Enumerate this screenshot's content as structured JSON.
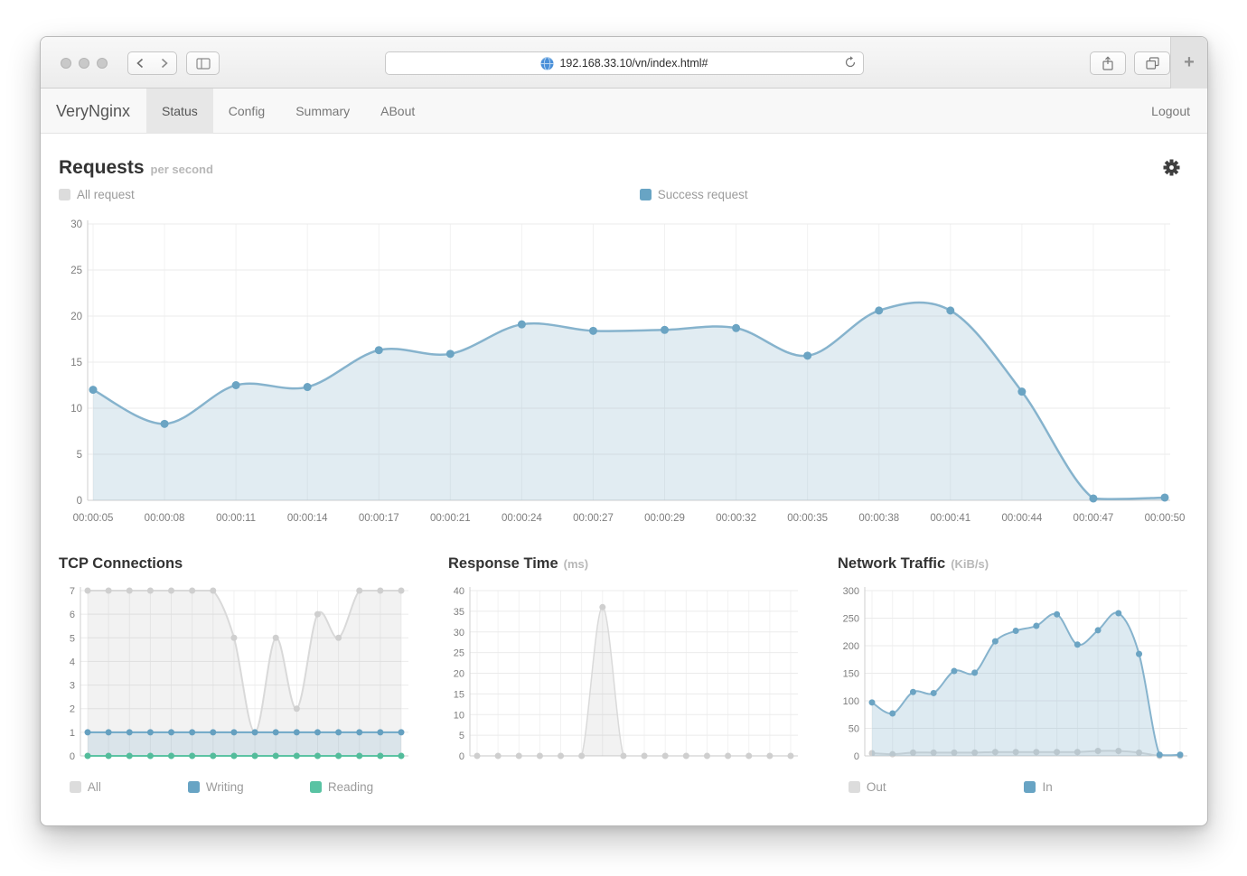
{
  "browser": {
    "url": "192.168.33.10/vn/index.html#",
    "new_tab_label": "+"
  },
  "navbar": {
    "brand": "VeryNginx",
    "items": [
      {
        "label": "Status",
        "active": true
      },
      {
        "label": "Config",
        "active": false
      },
      {
        "label": "Summary",
        "active": false
      },
      {
        "label": "ABout",
        "active": false
      }
    ],
    "logout_label": "Logout"
  },
  "colors": {
    "series_blue": "#86b3cd",
    "marker_blue": "#6ba4c3",
    "series_gray": "#d9d9d9",
    "marker_gray": "#cfcfcf",
    "series_green": "#5cc3a3",
    "legend_gray": "#dcdcdc",
    "legend_blue": "#68a4c4",
    "legend_green": "#59c3a3"
  },
  "chart_data": [
    {
      "id": "requests",
      "type": "area",
      "title": "Requests",
      "subtitle": "per second",
      "x_labels": [
        "00:00:05",
        "00:00:08",
        "00:00:11",
        "00:00:14",
        "00:00:17",
        "00:00:21",
        "00:00:24",
        "00:00:27",
        "00:00:29",
        "00:00:32",
        "00:00:35",
        "00:00:38",
        "00:00:41",
        "00:00:44",
        "00:00:47",
        "00:00:50"
      ],
      "ylim": [
        0,
        30
      ],
      "y_ticks": [
        0,
        5,
        10,
        15,
        20,
        25,
        30
      ],
      "grid": true,
      "legend_position": "top",
      "legend": [
        {
          "label": "All request",
          "color": "#dcdcdc",
          "pos": 0
        },
        {
          "label": "Success request",
          "color": "#68a4c4",
          "pos": 51.3
        }
      ],
      "series": [
        {
          "name": "Success request",
          "color": "#86b3cd",
          "marker": "#6ba4c3",
          "fill": "rgba(134,179,205,0.25)",
          "values": [
            12,
            8.3,
            12.5,
            12.3,
            16.3,
            15.9,
            19.1,
            18.4,
            18.5,
            18.7,
            15.7,
            20.6,
            20.6,
            11.8,
            0.2,
            0.3
          ]
        }
      ]
    },
    {
      "id": "tcp",
      "type": "area",
      "title": "TCP Connections",
      "subtitle": "",
      "ylim": [
        0,
        7
      ],
      "y_ticks": [
        0,
        1,
        2,
        3,
        4,
        5,
        6,
        7
      ],
      "grid": true,
      "legend_position": "bottom",
      "legend": [
        {
          "label": "All",
          "color": "#dcdcdc",
          "pos": 3
        },
        {
          "label": "Writing",
          "color": "#68a4c4",
          "pos": 36
        },
        {
          "label": "Reading",
          "color": "#59c3a3",
          "pos": 70
        }
      ],
      "series": [
        {
          "name": "All",
          "color": "#d9d9d9",
          "marker": "#cfcfcf",
          "fill": "rgba(0,0,0,0.05)",
          "values": [
            7,
            7,
            7,
            7,
            7,
            7,
            7,
            5,
            1,
            5,
            2,
            6,
            5,
            7,
            7,
            7
          ]
        },
        {
          "name": "Writing",
          "color": "#6fa8c7",
          "marker": "#65a0c0",
          "fill": "rgba(111,168,199,0.18)",
          "values": [
            1,
            1,
            1,
            1,
            1,
            1,
            1,
            1,
            1,
            1,
            1,
            1,
            1,
            1,
            1,
            1
          ]
        },
        {
          "name": "Reading",
          "color": "#5cc3a3",
          "marker": "#53bc9b",
          "fill": "rgba(92,195,163,0.12)",
          "values": [
            0,
            0,
            0,
            0,
            0,
            0,
            0,
            0,
            0,
            0,
            0,
            0,
            0,
            0,
            0,
            0
          ]
        }
      ]
    },
    {
      "id": "response",
      "type": "area",
      "title": "Response Time",
      "subtitle": "(ms)",
      "ylim": [
        0,
        40
      ],
      "y_ticks": [
        0,
        5,
        10,
        15,
        20,
        25,
        30,
        35,
        40
      ],
      "grid": true,
      "legend_position": "bottom",
      "legend": [],
      "series": [
        {
          "name": "Response time",
          "color": "#dadada",
          "marker": "#cfcfcf",
          "fill": "rgba(0,0,0,0.05)",
          "values": [
            0,
            0,
            0,
            0,
            0,
            0,
            36,
            0,
            0,
            0,
            0,
            0,
            0,
            0,
            0,
            0
          ]
        }
      ]
    },
    {
      "id": "network",
      "type": "area",
      "title": "Network Traffic",
      "subtitle": "(KiB/s)",
      "ylim": [
        0,
        300
      ],
      "y_ticks": [
        0,
        50,
        100,
        150,
        200,
        250,
        300
      ],
      "grid": true,
      "legend_position": "bottom",
      "legend": [
        {
          "label": "Out",
          "color": "#dcdcdc",
          "pos": 3
        },
        {
          "label": "In",
          "color": "#68a4c4",
          "pos": 52
        }
      ],
      "series": [
        {
          "name": "Out",
          "color": "#d9d9d9",
          "marker": "#cfcfcf",
          "fill": "rgba(0,0,0,0.04)",
          "values": [
            5,
            3,
            6,
            6,
            6,
            6,
            7,
            7,
            7,
            7,
            7,
            9,
            9,
            6,
            0,
            0
          ]
        },
        {
          "name": "In",
          "color": "#86b3cd",
          "marker": "#6ba4c3",
          "fill": "rgba(134,179,205,0.28)",
          "values": [
            97,
            77,
            116,
            114,
            154,
            151,
            208,
            227,
            236,
            257,
            202,
            228,
            259,
            185,
            2,
            2
          ]
        }
      ]
    }
  ]
}
